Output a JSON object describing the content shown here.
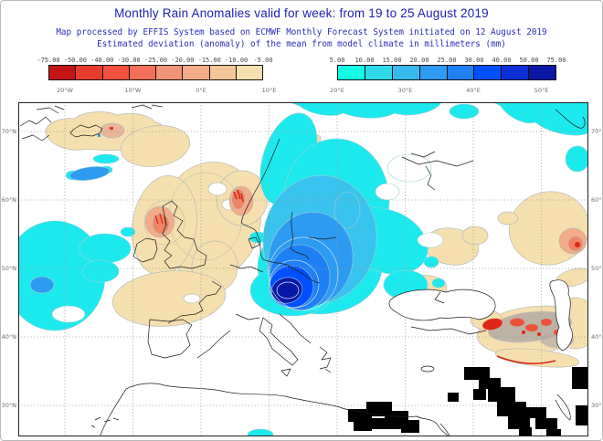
{
  "header": {
    "title": "Monthly Rain Anomalies valid for week: from 19 to 25 August 2019",
    "subtitle_line1": "Map processed by EFFIS System based on ECMWF Monthly Forecast System initiated on 12 August 2019",
    "subtitle_line2": "Estimated deviation (anomaly) of the mean from model climate in millimeters (mm)",
    "title_color": "#1c1cb4",
    "subtitle_color": "#2b2bbd"
  },
  "legend": {
    "units": "mm",
    "negative": {
      "tick_labels": [
        "-75.00",
        "-50.00",
        "-40.00",
        "-30.00",
        "-25.00",
        "-20.00",
        "-15.00",
        "-10.00",
        "-5.00"
      ],
      "cell_colors": [
        "#c41414",
        "#e63c2c",
        "#f25140",
        "#f2705a",
        "#f2937a",
        "#f3ab88",
        "#f4c69b",
        "#f5dfae"
      ]
    },
    "positive": {
      "tick_labels": [
        "5.00",
        "10.00",
        "15.00",
        "20.00",
        "25.00",
        "30.00",
        "40.00",
        "50.00",
        "75.00"
      ],
      "cell_colors": [
        "#14ffe6",
        "#2fd9ea",
        "#36b9ec",
        "#2e9bf2",
        "#1f7ff5",
        "#0050ff",
        "#0c2fd8",
        "#0a18a8"
      ]
    }
  },
  "map": {
    "top_axis_labels": [
      "20°W",
      "10°W",
      "0°E",
      "10°E",
      "20°E",
      "30°E",
      "40°E",
      "50°E"
    ],
    "left_axis_labels": [
      "70°N",
      "60°N",
      "50°N",
      "40°N",
      "30°N"
    ],
    "right_axis_labels": [
      "70°N",
      "60°N",
      "50°N",
      "40°N",
      "30°N"
    ],
    "grid_color": "#999999",
    "coastline_color": "#1c1c1c",
    "no_data_color": "#000000",
    "frame_color": "#222222"
  }
}
